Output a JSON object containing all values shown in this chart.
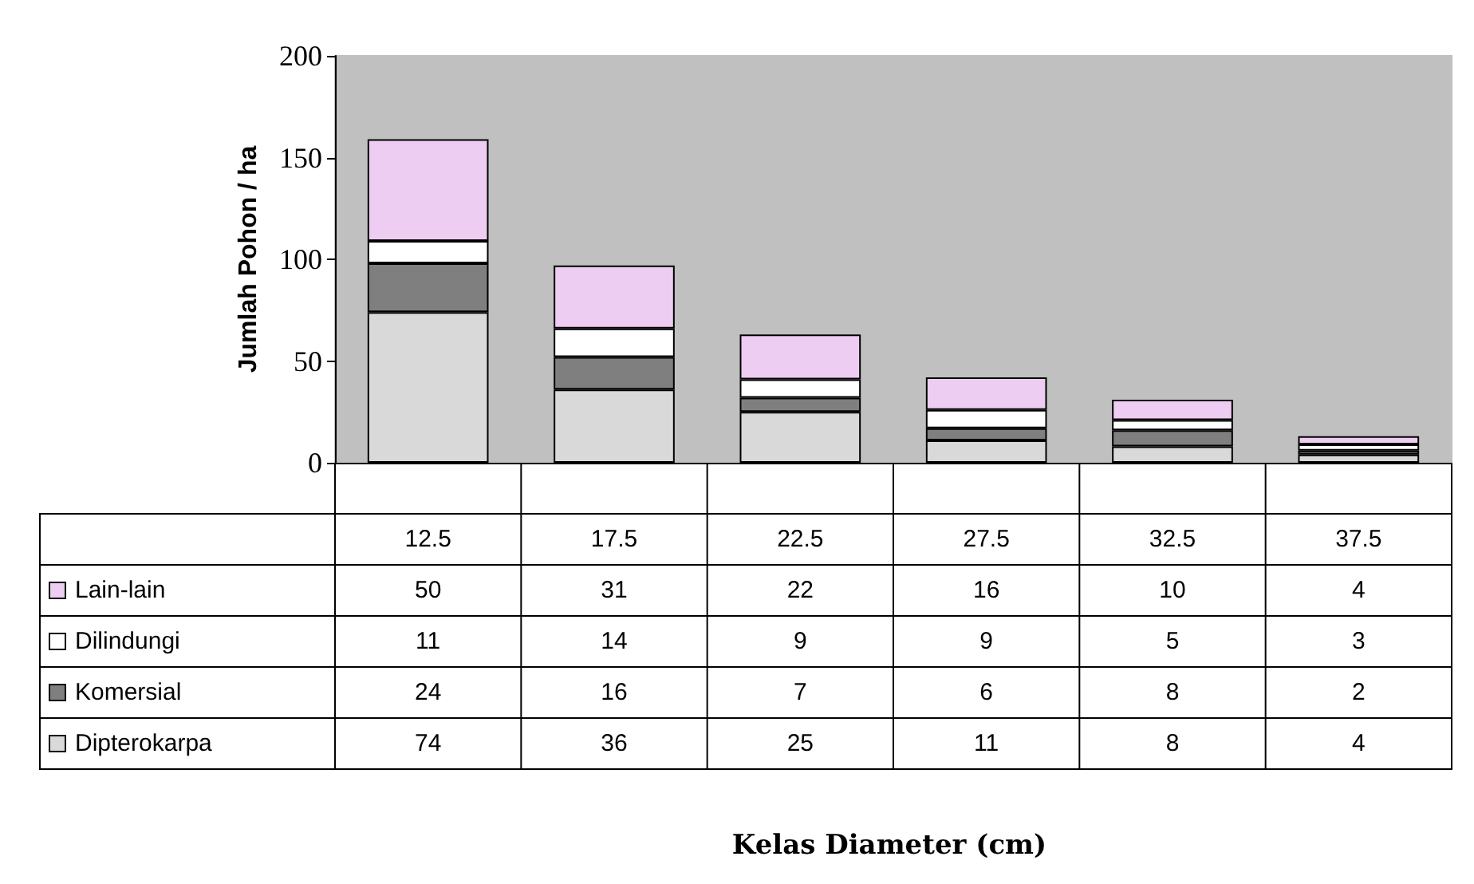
{
  "chart_data": {
    "type": "bar",
    "stacked": true,
    "annotations": [
      "Kelas Diameter (cm)"
    ],
    "legend": "bottom left",
    "ylabel": "Jumlah Pohon / ha",
    "categories": [
      "12.5",
      "17.5",
      "22.5",
      "27.5",
      "32.5",
      "37.5"
    ],
    "series": [
      {
        "name": "Dipterokarpa",
        "color": "#d9d9d9",
        "values": [
          74,
          36,
          25,
          11,
          8,
          4
        ]
      },
      {
        "name": "Komersial",
        "color": "#7f7f7f",
        "values": [
          24,
          16,
          7,
          6,
          8,
          2
        ]
      },
      {
        "name": "Dilindungi",
        "color": "#ffffff",
        "values": [
          11,
          14,
          9,
          9,
          5,
          3
        ]
      },
      {
        "name": "Lain-lain",
        "color": "#eecdf2",
        "values": [
          50,
          31,
          22,
          16,
          10,
          4
        ]
      }
    ],
    "ylim": [
      0,
      200
    ],
    "yticks": [
      0,
      50,
      100,
      150,
      200
    ],
    "data_labels": true
  }
}
